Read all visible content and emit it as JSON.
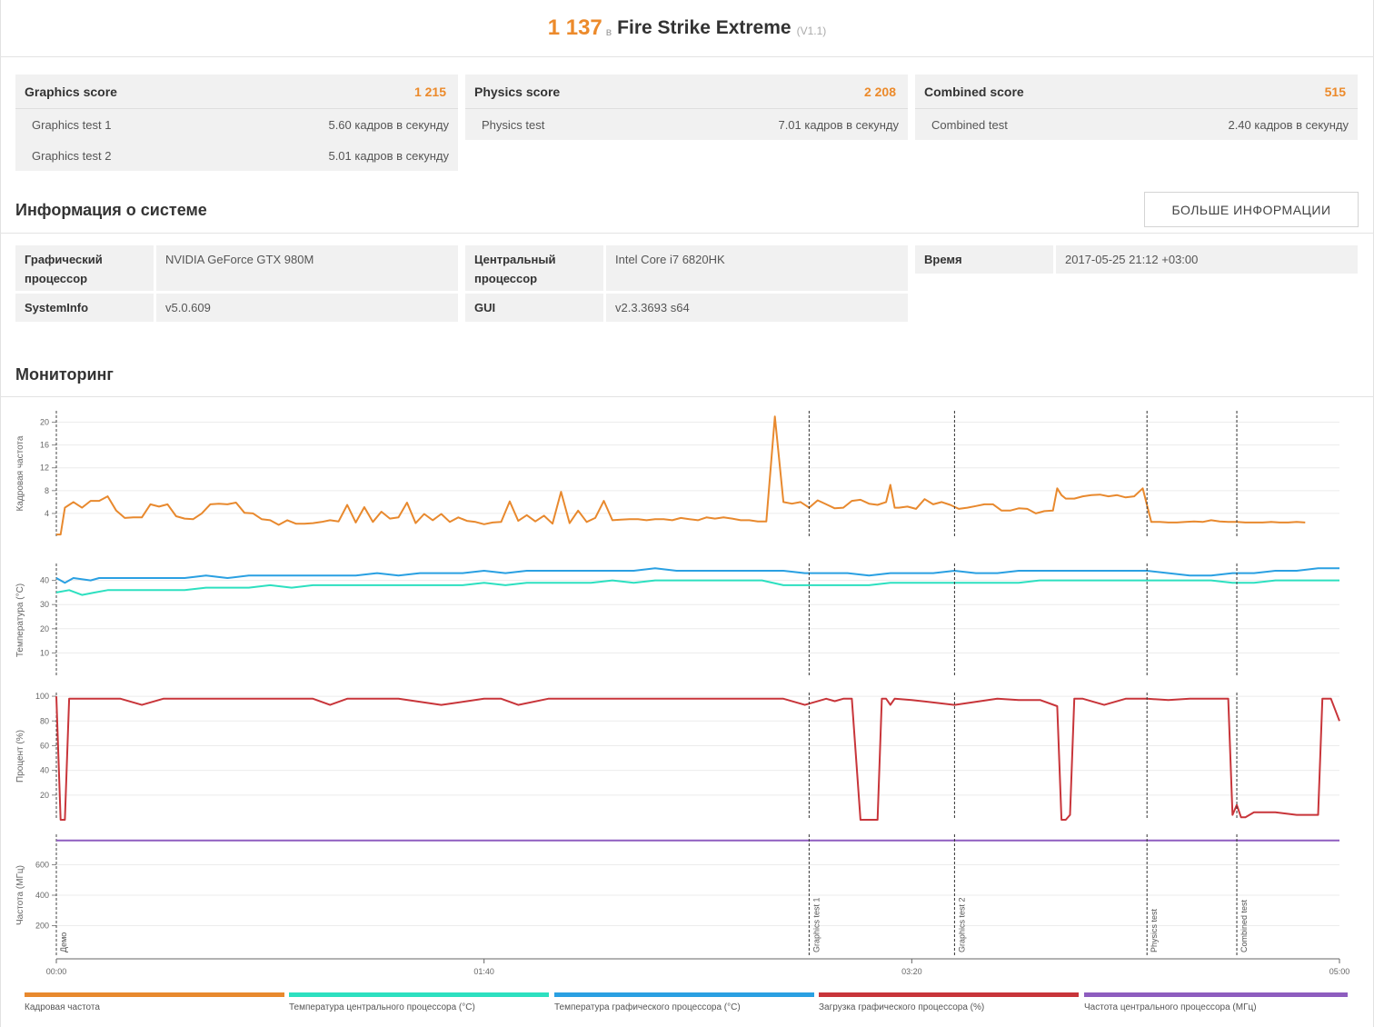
{
  "header": {
    "score": "1 137",
    "in_word": "в",
    "benchmark": "Fire Strike Extreme",
    "version": "(V1.1)"
  },
  "scores": [
    {
      "title": "Graphics score",
      "value": "1 215",
      "rows": [
        {
          "label": "Graphics test 1",
          "value": "5.60 кадров в секунду"
        },
        {
          "label": "Graphics test 2",
          "value": "5.01 кадров в секунду"
        }
      ]
    },
    {
      "title": "Physics score",
      "value": "2 208",
      "rows": [
        {
          "label": "Physics test",
          "value": "7.01 кадров в секунду"
        }
      ]
    },
    {
      "title": "Combined score",
      "value": "515",
      "rows": [
        {
          "label": "Combined test",
          "value": "2.40 кадров в секунду"
        }
      ]
    }
  ],
  "system_info": {
    "title": "Информация о системе",
    "more_button": "БОЛЬШЕ ИНФОРМАЦИИ",
    "gpu_label": "Графический процессор",
    "gpu_value": "NVIDIA GeForce GTX 980M",
    "systeminfo_label": "SystemInfo",
    "systeminfo_value": "v5.0.609",
    "cpu_label": "Центральный процессор",
    "cpu_value": "Intel Core i7 6820HK",
    "gui_label": "GUI",
    "gui_value": "v2.3.3693 s64",
    "time_label": "Время",
    "time_value": "2017-05-25 21:12 +03:00"
  },
  "monitoring": {
    "title": "Мониторинг",
    "colors": {
      "framerate": "#e8892e",
      "cpu_temp": "#2de0c0",
      "gpu_temp": "#2aa0e2",
      "gpu_load": "#c8353a",
      "cpu_freq": "#8e5dbf"
    },
    "x_ticks": [
      "00:00",
      "01:40",
      "03:20",
      "05:00"
    ],
    "phases": [
      {
        "label": "Демо",
        "start": "00:00"
      },
      {
        "label": "Graphics test 1",
        "start": "02:56"
      },
      {
        "label": "Graphics test 2",
        "start": "03:30"
      },
      {
        "label": "Physics test",
        "start": "04:15"
      },
      {
        "label": "Combined test",
        "start": "04:36"
      }
    ],
    "legend": [
      "Кадровая частота",
      "Температура центрального процессора (°C)",
      "Температура графического процессора (°C)",
      "Загрузка графического процессора (%)",
      "Частота центрального процессора (МГц)"
    ]
  },
  "chart_data": [
    {
      "type": "line",
      "ylabel": "Кадровая частота",
      "yticks": [
        4,
        8,
        12,
        16,
        20
      ],
      "ylim": [
        0,
        22
      ],
      "xlim_seconds": [
        0,
        300
      ],
      "series": [
        {
          "name": "Кадровая частота",
          "x": [
            0,
            1,
            2,
            3,
            4,
            6,
            8,
            10,
            12,
            14,
            16,
            18,
            20,
            22,
            24,
            26,
            28,
            30,
            32,
            34,
            36,
            38,
            40,
            42,
            44,
            46,
            48,
            50,
            52,
            54,
            56,
            58,
            60,
            62,
            64,
            66,
            68,
            70,
            72,
            74,
            76,
            78,
            80,
            82,
            84,
            86,
            88,
            90,
            92,
            94,
            96,
            98,
            100,
            102,
            104,
            106,
            108,
            110,
            112,
            114,
            116,
            118,
            120,
            122,
            124,
            126,
            128,
            130,
            132,
            134,
            136,
            138,
            140,
            142,
            144,
            146,
            148,
            150,
            152,
            154,
            156,
            158,
            160,
            162,
            164,
            166,
            168,
            170,
            172,
            174,
            176,
            178,
            180,
            182,
            184,
            186,
            188,
            190,
            192,
            194,
            195,
            196,
            197,
            199,
            201,
            203,
            205,
            207,
            209,
            211,
            213,
            215,
            217,
            219,
            221,
            223,
            225,
            227,
            229,
            231,
            233,
            234,
            235,
            236,
            238,
            240,
            242,
            244,
            246,
            248,
            250,
            252,
            254,
            256,
            258,
            260,
            262,
            264,
            266,
            268,
            270,
            272,
            274,
            276,
            278,
            280,
            282,
            284,
            286,
            288,
            290,
            292
          ],
          "values": [
            0.3,
            0.3,
            5,
            5.5,
            6,
            5,
            6.2,
            6.2,
            7,
            4.5,
            3.2,
            3.3,
            3.3,
            5.6,
            5.2,
            5.6,
            3.5,
            3.1,
            3,
            4,
            5.6,
            5.7,
            5.6,
            5.9,
            4.1,
            4,
            3,
            2.8,
            2,
            2.8,
            2.2,
            2.2,
            2.3,
            2.5,
            2.8,
            2.6,
            5.5,
            2.4,
            5.1,
            2.5,
            4.3,
            3.1,
            3.3,
            5.9,
            2.3,
            3.9,
            2.8,
            3.9,
            2.5,
            3.3,
            2.7,
            2.5,
            2.1,
            2.4,
            2.5,
            6.1,
            2.7,
            3.7,
            2.6,
            3.6,
            2.2,
            7.8,
            2.3,
            4.5,
            2.5,
            3.2,
            6.2,
            2.8,
            2.9,
            3,
            3,
            2.8,
            3,
            3,
            2.8,
            3.2,
            3,
            2.8,
            3.3,
            3.1,
            3.3,
            3.1,
            2.8,
            2.8,
            2.6,
            2.6,
            21,
            6,
            5.7,
            6,
            5,
            6.3,
            5.6,
            4.9,
            5,
            6.2,
            6.4,
            5.7,
            5.5,
            6,
            9,
            5,
            5,
            5.2,
            4.8,
            6.5,
            5.6,
            6,
            5.5,
            4.8,
            5,
            5.3,
            5.6,
            5.6,
            4.5,
            4.5,
            4.9,
            4.8,
            4,
            4.4,
            4.5,
            8.4,
            7.2,
            6.6,
            6.6,
            7,
            7.2,
            7.3,
            7,
            7.2,
            6.8,
            7,
            8.4,
            2.5,
            2.5,
            2.4,
            2.4,
            2.5,
            2.6,
            2.5,
            2.8,
            2.6,
            2.5,
            2.5,
            2.4,
            2.4,
            2.4,
            2.5,
            2.4,
            2.4,
            2.5,
            2.4
          ]
        }
      ]
    },
    {
      "type": "line",
      "ylabel": "Температура (°C)",
      "yticks": [
        10,
        20,
        30,
        40
      ],
      "ylim": [
        0,
        47
      ],
      "xlim_seconds": [
        0,
        300
      ],
      "series": [
        {
          "name": "Температура графического процессора (°C)",
          "x": [
            0,
            2,
            4,
            8,
            10,
            15,
            20,
            25,
            30,
            35,
            40,
            45,
            50,
            55,
            60,
            65,
            70,
            75,
            80,
            85,
            90,
            95,
            100,
            105,
            110,
            115,
            120,
            125,
            130,
            135,
            140,
            145,
            150,
            155,
            160,
            165,
            170,
            175,
            180,
            185,
            190,
            195,
            200,
            205,
            210,
            215,
            220,
            225,
            230,
            235,
            240,
            245,
            250,
            255,
            260,
            265,
            270,
            275,
            280,
            285,
            290,
            295,
            300
          ],
          "values": [
            41,
            39,
            41,
            40,
            41,
            41,
            41,
            41,
            41,
            42,
            41,
            42,
            42,
            42,
            42,
            42,
            42,
            43,
            42,
            43,
            43,
            43,
            44,
            43,
            44,
            44,
            44,
            44,
            44,
            44,
            45,
            44,
            44,
            44,
            44,
            44,
            44,
            43,
            43,
            43,
            42,
            43,
            43,
            43,
            44,
            43,
            43,
            44,
            44,
            44,
            44,
            44,
            44,
            44,
            43,
            42,
            42,
            43,
            43,
            44,
            44,
            45,
            45
          ]
        },
        {
          "name": "Температура центрального процессора (°C)",
          "x": [
            0,
            3,
            6,
            9,
            12,
            15,
            20,
            25,
            30,
            35,
            40,
            45,
            50,
            55,
            60,
            65,
            70,
            75,
            80,
            85,
            90,
            95,
            100,
            105,
            110,
            115,
            120,
            125,
            130,
            135,
            140,
            145,
            150,
            155,
            160,
            165,
            170,
            175,
            180,
            185,
            190,
            195,
            200,
            205,
            210,
            215,
            220,
            225,
            230,
            235,
            240,
            245,
            250,
            255,
            260,
            265,
            270,
            275,
            280,
            285,
            290,
            295,
            300
          ],
          "values": [
            35,
            36,
            34,
            35,
            36,
            36,
            36,
            36,
            36,
            37,
            37,
            37,
            38,
            37,
            38,
            38,
            38,
            38,
            38,
            38,
            38,
            38,
            39,
            38,
            39,
            39,
            39,
            39,
            40,
            39,
            40,
            40,
            40,
            40,
            40,
            40,
            38,
            38,
            38,
            38,
            38,
            39,
            39,
            39,
            39,
            39,
            39,
            39,
            40,
            40,
            40,
            40,
            40,
            40,
            40,
            40,
            40,
            39,
            39,
            40,
            40,
            40,
            40
          ]
        }
      ]
    },
    {
      "type": "line",
      "ylabel": "Процент (%)",
      "yticks": [
        20,
        40,
        60,
        80,
        100
      ],
      "ylim": [
        0,
        103
      ],
      "xlim_seconds": [
        0,
        300
      ],
      "series": [
        {
          "name": "Загрузка графического процессора (%)",
          "x": [
            0,
            1,
            2,
            3,
            5,
            15,
            20,
            25,
            30,
            40,
            50,
            60,
            64,
            68,
            72,
            80,
            90,
            100,
            104,
            108,
            115,
            120,
            125,
            130,
            140,
            150,
            160,
            170,
            175,
            180,
            182,
            184,
            186,
            188,
            190,
            192,
            193,
            194,
            195,
            196,
            200,
            210,
            220,
            225,
            230,
            234,
            235,
            236,
            237,
            238,
            240,
            245,
            250,
            255,
            260,
            265,
            270,
            274,
            275,
            276,
            277,
            278,
            280,
            285,
            290,
            295,
            296,
            297,
            298,
            300
          ],
          "values": [
            100,
            0,
            0,
            98,
            98,
            98,
            93,
            98,
            98,
            98,
            98,
            98,
            93,
            98,
            98,
            98,
            93,
            98,
            98,
            93,
            98,
            98,
            98,
            98,
            98,
            98,
            98,
            98,
            93,
            98,
            96,
            98,
            98,
            0,
            0,
            0,
            98,
            98,
            93,
            98,
            97,
            93,
            98,
            97,
            97,
            92,
            0,
            0,
            4,
            98,
            98,
            93,
            98,
            98,
            97,
            98,
            98,
            98,
            4,
            12,
            2,
            2,
            6,
            6,
            4,
            4,
            98,
            98,
            98,
            80
          ]
        }
      ]
    },
    {
      "type": "line",
      "ylabel": "Частота (МГц)",
      "yticks": [
        200,
        400,
        600
      ],
      "ylim": [
        0,
        800
      ],
      "xlim_seconds": [
        0,
        300
      ],
      "series": [
        {
          "name": "Частота центрального процессора (МГц)",
          "x": [
            0,
            300
          ],
          "values": [
            760,
            760
          ]
        }
      ]
    }
  ]
}
